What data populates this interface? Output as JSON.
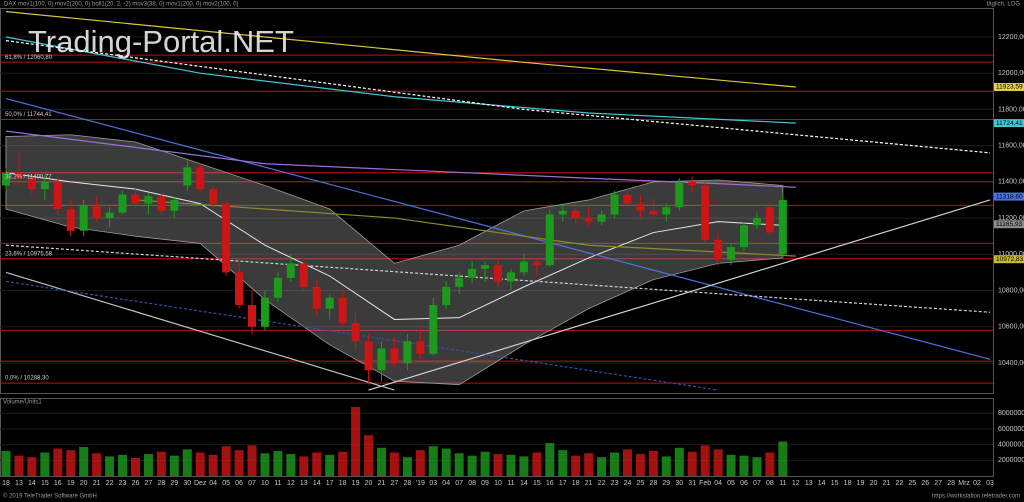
{
  "header": {
    "legend": "DAX  mov1(100, 0)  mov2(200, 0)  boll1(20, 2, -2)  mov3(38, 0)  mov1(200, 0)  mov2(100, 0)",
    "timeframe": "täglich, LOG",
    "watermark": "Trading-Portal.NET"
  },
  "chart_data": [
    {
      "type": "candlestick",
      "categories": [
        "18",
        "13",
        "14",
        "15",
        "16",
        "19",
        "20",
        "21",
        "22",
        "23",
        "26",
        "27",
        "28",
        "29",
        "30",
        "Dez",
        "04",
        "05",
        "06",
        "07",
        "10",
        "11",
        "12",
        "13",
        "14",
        "17",
        "18",
        "19",
        "20",
        "21",
        "27",
        "28",
        "'19",
        "03",
        "04",
        "07",
        "08",
        "09",
        "10",
        "11",
        "14",
        "15",
        "16",
        "17",
        "18",
        "21",
        "22",
        "23",
        "24",
        "25",
        "28",
        "29",
        "30",
        "31",
        "Feb",
        "04",
        "05",
        "06",
        "07",
        "08",
        "11",
        "12",
        "13",
        "14",
        "15",
        "18",
        "19",
        "20",
        "21",
        "22",
        "25",
        "26",
        "27",
        "28",
        "Mrz",
        "02",
        "03"
      ],
      "open": [
        11380,
        11450,
        11420,
        11360,
        11400,
        11250,
        11130,
        11270,
        11200,
        11230,
        11330,
        11280,
        11320,
        11240,
        11380,
        11480,
        11360,
        11280,
        10900,
        10720,
        10600,
        10760,
        10870,
        10950,
        10820,
        10700,
        10760,
        10620,
        10520,
        10360,
        10480,
        10400,
        10520,
        10450,
        10720,
        10820,
        10870,
        10920,
        10940,
        10850,
        10900,
        10960,
        10940,
        11220,
        11240,
        11200,
        11180,
        11220,
        11330,
        11280,
        11240,
        11220,
        11260,
        11400,
        11380,
        11080,
        10970,
        11040,
        11160,
        11260,
        11000,
        null,
        null,
        null,
        null,
        null,
        null,
        null,
        null,
        null,
        null,
        null,
        null,
        null,
        null,
        null,
        null
      ],
      "high": [
        11480,
        11560,
        11460,
        11440,
        11430,
        11300,
        11300,
        11320,
        11260,
        11350,
        11360,
        11340,
        11340,
        11320,
        11520,
        11500,
        11380,
        11300,
        10960,
        10800,
        10800,
        10900,
        11000,
        10980,
        10860,
        10780,
        10800,
        10680,
        10560,
        10520,
        10540,
        10560,
        10600,
        10760,
        10850,
        10900,
        10960,
        10960,
        10980,
        10920,
        11000,
        10980,
        11250,
        11270,
        11260,
        11260,
        11240,
        11350,
        11360,
        11330,
        11310,
        11280,
        11420,
        11430,
        11400,
        11120,
        11060,
        11180,
        11230,
        11290,
        11330,
        null,
        null,
        null,
        null,
        null,
        null,
        null,
        null,
        null,
        null,
        null,
        null,
        null,
        null,
        null,
        null
      ],
      "low": [
        11350,
        11380,
        11330,
        11300,
        11220,
        11100,
        11100,
        11180,
        11150,
        11220,
        11250,
        11220,
        11220,
        11200,
        11350,
        11340,
        11250,
        10880,
        10700,
        10560,
        10580,
        10740,
        10850,
        10800,
        10660,
        10640,
        10600,
        10480,
        10280,
        10300,
        10380,
        10360,
        10420,
        10440,
        10700,
        10780,
        10840,
        10850,
        10820,
        10800,
        10880,
        10880,
        10930,
        11180,
        11170,
        11150,
        11160,
        11200,
        11260,
        11200,
        11200,
        11180,
        11240,
        11340,
        11060,
        10940,
        10940,
        11020,
        11140,
        11100,
        10980,
        null,
        null,
        null,
        null,
        null,
        null,
        null,
        null,
        null,
        null,
        null,
        null,
        null,
        null,
        null,
        null
      ],
      "close": [
        11450,
        11420,
        11360,
        11400,
        11250,
        11130,
        11270,
        11200,
        11230,
        11330,
        11280,
        11320,
        11240,
        11300,
        11480,
        11360,
        11280,
        10900,
        10720,
        10600,
        10760,
        10870,
        10950,
        10820,
        10700,
        10760,
        10620,
        10520,
        10360,
        10480,
        10400,
        10520,
        10450,
        10720,
        10820,
        10870,
        10920,
        10940,
        10850,
        10900,
        10960,
        10940,
        11220,
        11240,
        11200,
        11180,
        11220,
        11330,
        11280,
        11240,
        11220,
        11260,
        11400,
        11380,
        11080,
        10970,
        11040,
        11160,
        11200,
        11120,
        11300,
        null,
        null,
        null,
        null,
        null,
        null,
        null,
        null,
        null,
        null,
        null,
        null,
        null,
        null,
        null,
        null
      ],
      "up_color": "#1d9a1d",
      "down_color": "#cc1515",
      "ylim": [
        10234,
        12360
      ],
      "yticks": [
        {
          "value": 10400,
          "label": "10400,00"
        },
        {
          "value": 10600,
          "label": "10600,00"
        },
        {
          "value": 10800,
          "label": "10800,00"
        },
        {
          "value": 11000,
          "label": "11000,00"
        },
        {
          "value": 11200,
          "label": "11200,00"
        },
        {
          "value": 11400,
          "label": "11400,00"
        },
        {
          "value": 11600,
          "label": "11600,00"
        },
        {
          "value": 11800,
          "label": "11800,00"
        },
        {
          "value": 12000,
          "label": "12000,00"
        },
        {
          "value": 12200,
          "label": "12200,00"
        }
      ],
      "grid": true,
      "fib_levels": [
        {
          "value": 12060.8,
          "label": "61,8% / 12060,80"
        },
        {
          "value": 11744.41,
          "label": "50,0% / 11744,41"
        },
        {
          "value": 11400.77,
          "label": "38,2% / 11400,77"
        },
        {
          "value": 10975.58,
          "label": "23,6% / 10975,58"
        },
        {
          "value": 10288.3,
          "label": "0,0% / 10288,30"
        }
      ],
      "horizontal_lines": {
        "color": "#c01010",
        "values": [
          12100,
          11900,
          11450,
          11270,
          11060,
          10580,
          10410
        ]
      },
      "band": {
        "color": "#9a9a9a",
        "x": [
          0,
          5,
          10,
          15,
          20,
          25,
          30,
          35,
          40,
          45,
          50,
          55,
          60
        ],
        "upper": [
          11650,
          11660,
          11620,
          11500,
          11380,
          11250,
          10950,
          11050,
          11240,
          11300,
          11400,
          11410,
          11380
        ],
        "lower": [
          11250,
          11150,
          11100,
          11060,
          10750,
          10500,
          10300,
          10280,
          10500,
          10700,
          10860,
          10950,
          10980
        ],
        "middle": [
          11450,
          11400,
          11360,
          11280,
          11050,
          10880,
          10640,
          10650,
          10820,
          10980,
          11120,
          11180,
          11160
        ]
      },
      "overlays": [
        {
          "color": "#d8c83a",
          "dashed": false,
          "x": [
            0,
            20,
            40,
            61
          ],
          "values": [
            12340,
            12200,
            12060,
            11923.59
          ]
        },
        {
          "color": "#3fc7d4",
          "dashed": false,
          "x": [
            0,
            15,
            30,
            45,
            61
          ],
          "values": [
            12200,
            12000,
            11870,
            11780,
            11724.41
          ]
        },
        {
          "color": "#ffffff",
          "dashed": true,
          "x": [
            0,
            40,
            76
          ],
          "values": [
            12180,
            11800,
            11560
          ]
        },
        {
          "color": "#4a74e0",
          "dashed": false,
          "x": [
            0,
            76
          ],
          "values": [
            11860,
            10420
          ]
        },
        {
          "color": "#9b6fd8",
          "dashed": false,
          "x": [
            0,
            20,
            45,
            55,
            61
          ],
          "values": [
            11680,
            11500,
            11420,
            11390,
            11370
          ]
        },
        {
          "color": "#8f8a2a",
          "dashed": false,
          "x": [
            10,
            30,
            45,
            61
          ],
          "values": [
            11300,
            11200,
            11050,
            10990
          ]
        },
        {
          "color": "#d0d0d0",
          "dashed": false,
          "x": [
            28,
            76
          ],
          "values": [
            10250,
            11300
          ]
        },
        {
          "color": "#d0d0d0",
          "dashed": true,
          "x": [
            0,
            76
          ],
          "values": [
            11050,
            10680
          ]
        },
        {
          "color": "#bdbdbd",
          "dashed": false,
          "x": [
            0,
            30
          ],
          "values": [
            10900,
            10250
          ]
        },
        {
          "color": "#2f4fb0",
          "dashed": true,
          "x": [
            0,
            55
          ],
          "values": [
            10850,
            10250
          ]
        }
      ],
      "price_tags": [
        {
          "value": 11923.59,
          "label": "11923,59",
          "color": "#e0d040"
        },
        {
          "value": 11724.41,
          "label": "11724,41",
          "color": "#3fc7d4"
        },
        {
          "value": 11318.6,
          "label": "11318,60",
          "color": "#4a74e0"
        },
        {
          "value": 11165.93,
          "label": "11165,93",
          "color": "#8a8a8a"
        },
        {
          "value": 10972.83,
          "label": "10972,83",
          "color": "#c8b830"
        }
      ]
    },
    {
      "type": "bar",
      "title": "Volume/Units1",
      "values": [
        3200000,
        2600000,
        2400000,
        3000000,
        3500000,
        3300000,
        3700000,
        2900000,
        2500000,
        2700000,
        2300000,
        2800000,
        3100000,
        2600000,
        3400000,
        3000000,
        2700000,
        3800000,
        3300000,
        3900000,
        2900000,
        3200000,
        2800000,
        2500000,
        3000000,
        2700000,
        3100000,
        8800000,
        5200000,
        3600000,
        3000000,
        2400000,
        3300000,
        3800000,
        3500000,
        2900000,
        2600000,
        3100000,
        2800000,
        2700000,
        2500000,
        3000000,
        4200000,
        3300000,
        2600000,
        2900000,
        2400000,
        3000000,
        3400000,
        2800000,
        3200000,
        2500000,
        3600000,
        3100000,
        3900000,
        3400000,
        2700000,
        2600000,
        2400000,
        3000000,
        4400000,
        null,
        null,
        null,
        null,
        null,
        null,
        null,
        null,
        null,
        null,
        null,
        null,
        null,
        null,
        null,
        null
      ],
      "ylim": [
        0,
        9700000
      ],
      "yticks": [
        2000000,
        4000000,
        6000000,
        8000000
      ]
    }
  ],
  "footer": {
    "copyright": "© 2019 TeleTrader Software GmbH",
    "url": "https://workstation.teletrader.com"
  }
}
